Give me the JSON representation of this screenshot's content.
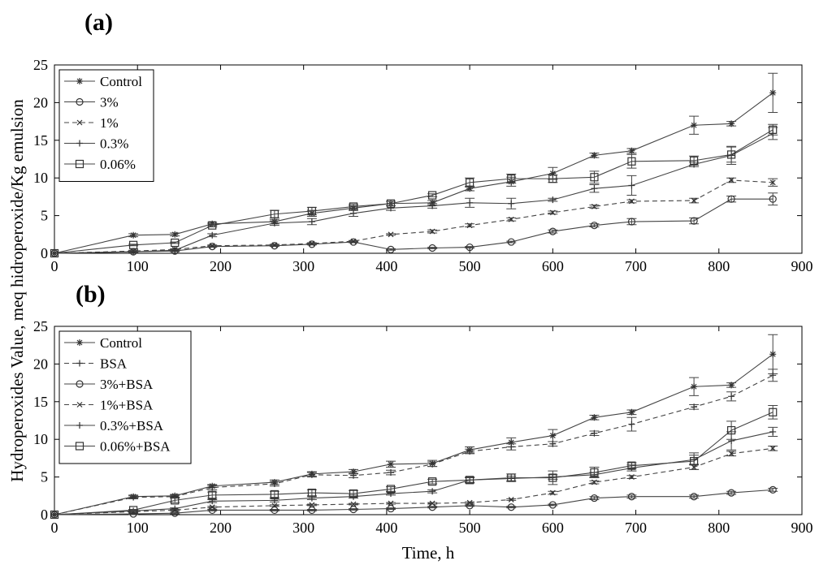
{
  "figure": {
    "ylabel": "Hydroperoxides Value, meq hidroperoxide/Kg emulsion",
    "xlabel": "Time, h"
  },
  "chart_data": [
    {
      "type": "line",
      "panel": "(a)",
      "xlim": [
        0,
        900
      ],
      "ylim": [
        0,
        25
      ],
      "xticks": [
        0,
        100,
        200,
        300,
        400,
        500,
        600,
        700,
        800,
        900
      ],
      "yticks": [
        0,
        5,
        10,
        15,
        20,
        25
      ],
      "legend_position": "top-left",
      "x": [
        0,
        95,
        145,
        190,
        265,
        310,
        360,
        405,
        455,
        500,
        550,
        600,
        650,
        695,
        770,
        815,
        865
      ],
      "series": [
        {
          "name": "Control",
          "marker": "star",
          "dash": "solid",
          "values": [
            0,
            2.4,
            2.5,
            3.9,
            4.2,
            5.3,
            6.0,
            6.6,
            6.7,
            8.6,
            9.5,
            10.6,
            13.0,
            13.6,
            17.0,
            17.2,
            21.3
          ],
          "errors": [
            0,
            0.2,
            0.2,
            0.2,
            0.3,
            0.4,
            0.3,
            0.3,
            0.3,
            0.3,
            0.6,
            0.8,
            0.3,
            0.3,
            1.2,
            0.3,
            2.6
          ]
        },
        {
          "name": "3%",
          "marker": "circle",
          "dash": "solid",
          "values": [
            0,
            0.2,
            0.3,
            0.9,
            1.0,
            1.2,
            1.5,
            0.5,
            0.7,
            0.8,
            1.5,
            2.9,
            3.7,
            4.2,
            4.3,
            7.2,
            7.2
          ],
          "errors": [
            0,
            0.1,
            0.1,
            0.1,
            0.1,
            0.1,
            0.1,
            0.1,
            0.1,
            0.1,
            0.1,
            0.2,
            0.2,
            0.4,
            0.4,
            0.4,
            0.8
          ]
        },
        {
          "name": "1%",
          "marker": "x",
          "dash": "dashed",
          "values": [
            0,
            0.3,
            0.5,
            1.0,
            1.1,
            1.3,
            1.6,
            2.5,
            2.9,
            3.7,
            4.5,
            5.4,
            6.2,
            6.9,
            7.0,
            9.7,
            9.4
          ],
          "errors": [
            0,
            0.1,
            0.1,
            0.1,
            0.1,
            0.1,
            0.1,
            0.1,
            0.2,
            0.2,
            0.2,
            0.2,
            0.2,
            0.2,
            0.3,
            0.3,
            0.5
          ]
        },
        {
          "name": "0.3%",
          "marker": "plus",
          "dash": "solid",
          "values": [
            0,
            0.2,
            0.4,
            2.4,
            4.0,
            4.2,
            5.3,
            6.0,
            6.3,
            6.7,
            6.6,
            7.1,
            8.6,
            9.0,
            11.8,
            13.0,
            15.9
          ],
          "errors": [
            0,
            0.1,
            0.1,
            0.2,
            0.3,
            0.4,
            0.4,
            0.3,
            0.3,
            0.6,
            0.7,
            0.2,
            0.5,
            1.3,
            0.3,
            1.2,
            0.8
          ]
        },
        {
          "name": "0.06%",
          "marker": "square",
          "dash": "solid",
          "values": [
            0,
            1.1,
            1.4,
            3.7,
            5.2,
            5.6,
            6.2,
            6.6,
            7.7,
            9.4,
            9.9,
            9.9,
            10.1,
            12.2,
            12.3,
            13.1,
            16.4
          ],
          "errors": [
            0,
            0.1,
            0.1,
            0.2,
            0.5,
            0.5,
            0.3,
            0.3,
            0.2,
            0.6,
            0.6,
            0.5,
            0.8,
            0.9,
            0.6,
            1.0,
            0.7
          ]
        }
      ]
    },
    {
      "type": "line",
      "panel": "(b)",
      "xlim": [
        0,
        900
      ],
      "ylim": [
        0,
        25
      ],
      "xticks": [
        0,
        100,
        200,
        300,
        400,
        500,
        600,
        700,
        800,
        900
      ],
      "yticks": [
        0,
        5,
        10,
        15,
        20,
        25
      ],
      "legend_position": "top-left",
      "x": [
        0,
        95,
        145,
        190,
        265,
        310,
        360,
        405,
        455,
        500,
        550,
        600,
        650,
        695,
        770,
        815,
        865
      ],
      "series": [
        {
          "name": "Control",
          "marker": "star",
          "dash": "solid",
          "values": [
            0,
            2.4,
            2.5,
            3.8,
            4.3,
            5.4,
            5.7,
            6.7,
            6.8,
            8.6,
            9.6,
            10.5,
            12.9,
            13.6,
            17.0,
            17.2,
            21.3
          ],
          "errors": [
            0,
            0.2,
            0.2,
            0.2,
            0.3,
            0.3,
            0.3,
            0.4,
            0.4,
            0.4,
            0.6,
            0.8,
            0.3,
            0.3,
            1.2,
            0.3,
            2.6
          ]
        },
        {
          "name": "BSA",
          "marker": "plus",
          "dash": "dashed",
          "values": [
            0,
            2.3,
            2.4,
            3.6,
            4.1,
            5.3,
            5.2,
            5.6,
            6.7,
            8.4,
            9.0,
            9.4,
            10.8,
            12.0,
            14.3,
            15.7,
            18.5
          ],
          "errors": [
            0,
            0.2,
            0.2,
            0.3,
            0.3,
            0.3,
            0.3,
            0.3,
            0.3,
            0.3,
            0.4,
            0.3,
            0.3,
            0.9,
            0.3,
            0.6,
            0.8
          ]
        },
        {
          "name": "3%+BSA",
          "marker": "circle",
          "dash": "solid",
          "values": [
            0,
            0.1,
            0.2,
            0.6,
            0.6,
            0.6,
            0.7,
            0.8,
            1.0,
            1.2,
            1.0,
            1.3,
            2.2,
            2.4,
            2.4,
            2.9,
            3.3
          ],
          "errors": [
            0,
            0.1,
            0.1,
            0.1,
            0.1,
            0.1,
            0.1,
            0.1,
            0.1,
            0.1,
            0.1,
            0.1,
            0.2,
            0.2,
            0.2,
            0.2,
            0.2
          ]
        },
        {
          "name": "1%+BSA",
          "marker": "x",
          "dash": "dashed",
          "values": [
            0,
            0.4,
            0.6,
            1.0,
            1.2,
            1.3,
            1.4,
            1.5,
            1.5,
            1.6,
            2.0,
            2.9,
            4.3,
            5.0,
            6.3,
            8.1,
            8.8
          ],
          "errors": [
            0,
            0.1,
            0.1,
            0.1,
            0.1,
            0.1,
            0.1,
            0.1,
            0.1,
            0.1,
            0.1,
            0.2,
            0.2,
            0.2,
            0.3,
            0.3,
            0.3
          ]
        },
        {
          "name": "0.3%+BSA",
          "marker": "plus",
          "dash": "solid",
          "values": [
            0,
            0.5,
            0.8,
            1.8,
            1.9,
            2.2,
            2.4,
            2.8,
            3.1,
            4.6,
            4.8,
            5.0,
            5.3,
            6.2,
            7.3,
            9.8,
            11.0
          ],
          "errors": [
            0,
            0.1,
            0.1,
            0.2,
            0.2,
            0.2,
            0.2,
            0.2,
            0.2,
            0.3,
            0.3,
            0.3,
            0.3,
            0.4,
            0.6,
            1.2,
            0.6
          ]
        },
        {
          "name": "0.06%+BSA",
          "marker": "square",
          "dash": "solid",
          "values": [
            0,
            0.6,
            1.9,
            2.6,
            2.7,
            2.9,
            2.8,
            3.4,
            4.4,
            4.6,
            4.9,
            4.9,
            5.6,
            6.5,
            7.1,
            11.2,
            13.6
          ],
          "errors": [
            0,
            0.1,
            0.3,
            0.4,
            0.4,
            0.4,
            0.4,
            0.3,
            0.3,
            0.4,
            0.5,
            0.9,
            0.7,
            0.4,
            1.1,
            1.2,
            0.9
          ]
        }
      ]
    }
  ]
}
